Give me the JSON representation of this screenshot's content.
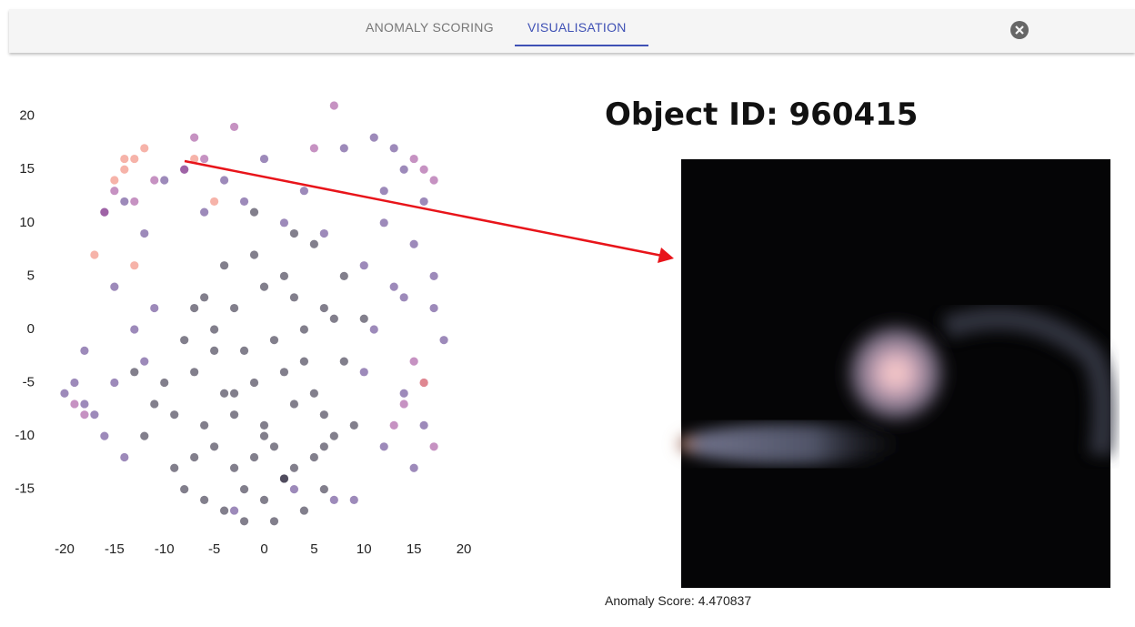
{
  "tabs": [
    "ANOMALY SCORING",
    "VISUALISATION"
  ],
  "chart_data": {
    "type": "scatter",
    "xlim": [
      -22,
      22
    ],
    "ylim": [
      -19,
      21
    ],
    "xticks": [
      -20,
      -15,
      -10,
      -5,
      0,
      5,
      10,
      15,
      20
    ],
    "yticks": [
      -15,
      -10,
      -5,
      0,
      5,
      10,
      15,
      20
    ],
    "series": [
      {
        "color": "#2e2a40",
        "x": [
          -8,
          -6,
          -4,
          -2,
          0,
          2,
          4,
          6,
          -7,
          -5,
          -3,
          -1,
          1,
          3,
          5,
          7,
          -9,
          -6,
          -3,
          0,
          3,
          6,
          9,
          -10,
          -7,
          -4,
          -1,
          2,
          5,
          8,
          -8,
          -5,
          -2,
          1,
          4,
          7,
          -6,
          -3,
          0,
          3,
          6,
          -4,
          -1,
          2,
          5,
          -12,
          -11,
          -13,
          8,
          10,
          -2,
          1,
          -5,
          4,
          0,
          -3,
          2,
          -7,
          6,
          -9,
          3,
          -1
        ],
        "values": [
          -15,
          -16,
          -17,
          -15,
          -16,
          -14,
          -17,
          -15,
          -12,
          -11,
          -13,
          -12,
          -11,
          -13,
          -12,
          -10,
          -8,
          -9,
          -8,
          -9,
          -7,
          -8,
          -9,
          -5,
          -4,
          -6,
          -5,
          -4,
          -6,
          -3,
          -1,
          0,
          -2,
          -1,
          0,
          1,
          3,
          2,
          4,
          3,
          2,
          6,
          7,
          5,
          8,
          -10,
          -7,
          -4,
          5,
          1,
          -18,
          -18,
          -2,
          -3,
          -10,
          -6,
          -14,
          2,
          -11,
          -13,
          9,
          11
        ]
      },
      {
        "color": "#5b3c8c",
        "x": [
          -18,
          -16,
          -14,
          -12,
          -15,
          -17,
          -19,
          -13,
          -11,
          -15,
          -12,
          -14,
          -10,
          -16,
          12,
          14,
          16,
          15,
          17,
          13,
          11,
          18,
          10,
          14,
          16,
          12,
          -8,
          -4,
          0,
          4,
          8,
          12,
          2,
          -2,
          6,
          10,
          14,
          -6,
          9,
          -3,
          3,
          7,
          15,
          17,
          -18,
          -20,
          11,
          13
        ],
        "values": [
          -7,
          -10,
          -12,
          -3,
          -5,
          -8,
          -5,
          0,
          2,
          4,
          9,
          12,
          14,
          11,
          13,
          15,
          12,
          8,
          5,
          4,
          0,
          -1,
          -4,
          -6,
          -9,
          -11,
          15,
          14,
          16,
          13,
          17,
          10,
          10,
          12,
          9,
          6,
          3,
          11,
          -16,
          -17,
          -15,
          -16,
          -13,
          2,
          -2,
          -6,
          18,
          17
        ]
      },
      {
        "color": "#a04a9a",
        "x": [
          -15,
          -13,
          -16,
          -11,
          -8,
          -6,
          -3,
          15,
          16,
          17,
          14,
          13,
          -19,
          -18,
          15,
          16,
          5,
          7,
          -7,
          17
        ],
        "values": [
          13,
          12,
          11,
          14,
          15,
          16,
          19,
          16,
          15,
          14,
          -7,
          -9,
          -7,
          -8,
          -3,
          -5,
          17,
          21,
          18,
          -11
        ]
      },
      {
        "color": "#f08070",
        "x": [
          -14,
          -13,
          -12,
          -15,
          -17,
          -7,
          -5,
          16,
          -13,
          -14
        ],
        "values": [
          15,
          16,
          17,
          14,
          7,
          16,
          12,
          -5,
          6,
          16
        ]
      }
    ]
  },
  "detail": {
    "title": "Object ID: 960415",
    "caption": "Anomaly Score: 4.470837"
  }
}
